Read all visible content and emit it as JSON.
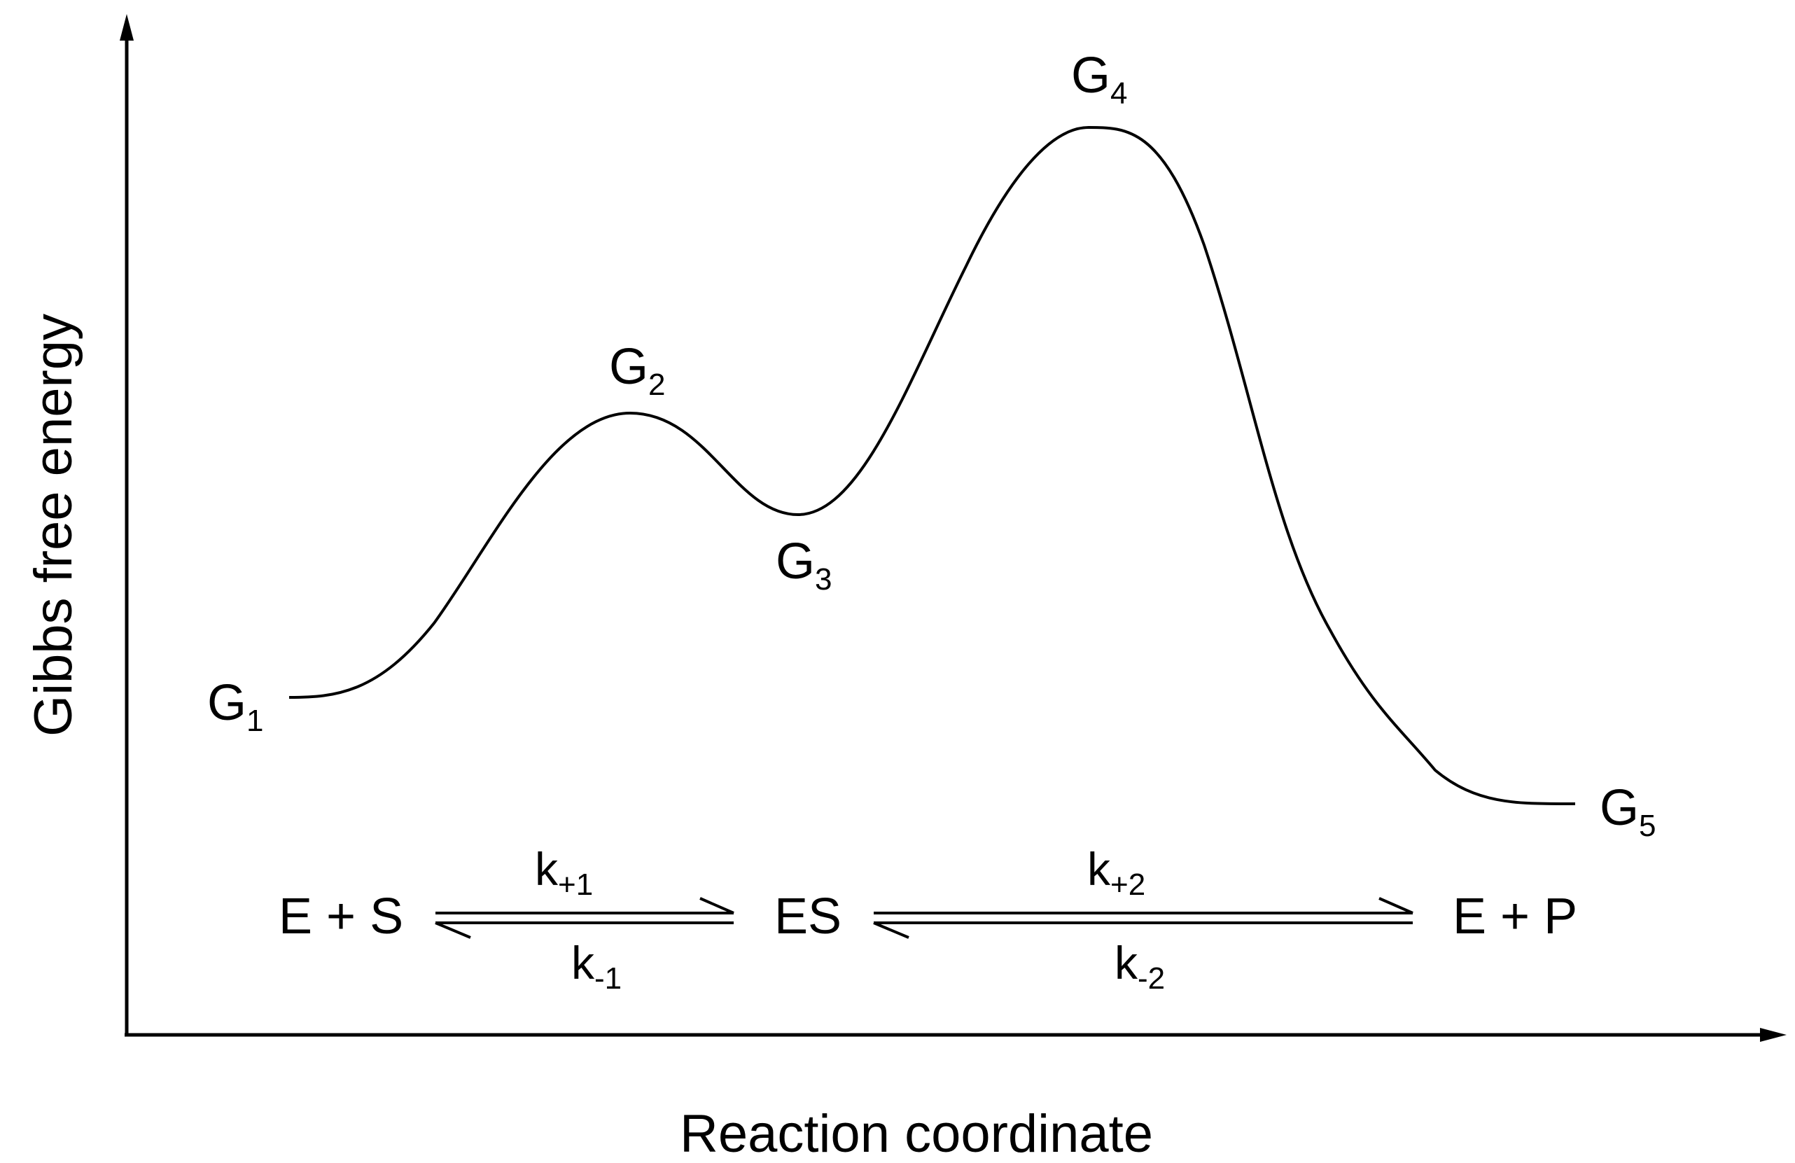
{
  "axes": {
    "y_label": "Gibbs free energy",
    "x_label": "Reaction coordinate"
  },
  "energy_levels": [
    {
      "base": "G",
      "sub": "1"
    },
    {
      "base": "G",
      "sub": "2"
    },
    {
      "base": "G",
      "sub": "3"
    },
    {
      "base": "G",
      "sub": "4"
    },
    {
      "base": "G",
      "sub": "5"
    }
  ],
  "scheme": {
    "reactants": "E + S",
    "intermediate": "ES",
    "products": "E + P",
    "k_forward_1": {
      "base": "k",
      "sub": "+1"
    },
    "k_reverse_1": {
      "base": "k",
      "sub": "-1"
    },
    "k_forward_2": {
      "base": "k",
      "sub": "+2"
    },
    "k_reverse_2": {
      "base": "k",
      "sub": "-2"
    }
  },
  "colors": {
    "line": "#000000",
    "background": "#ffffff"
  }
}
